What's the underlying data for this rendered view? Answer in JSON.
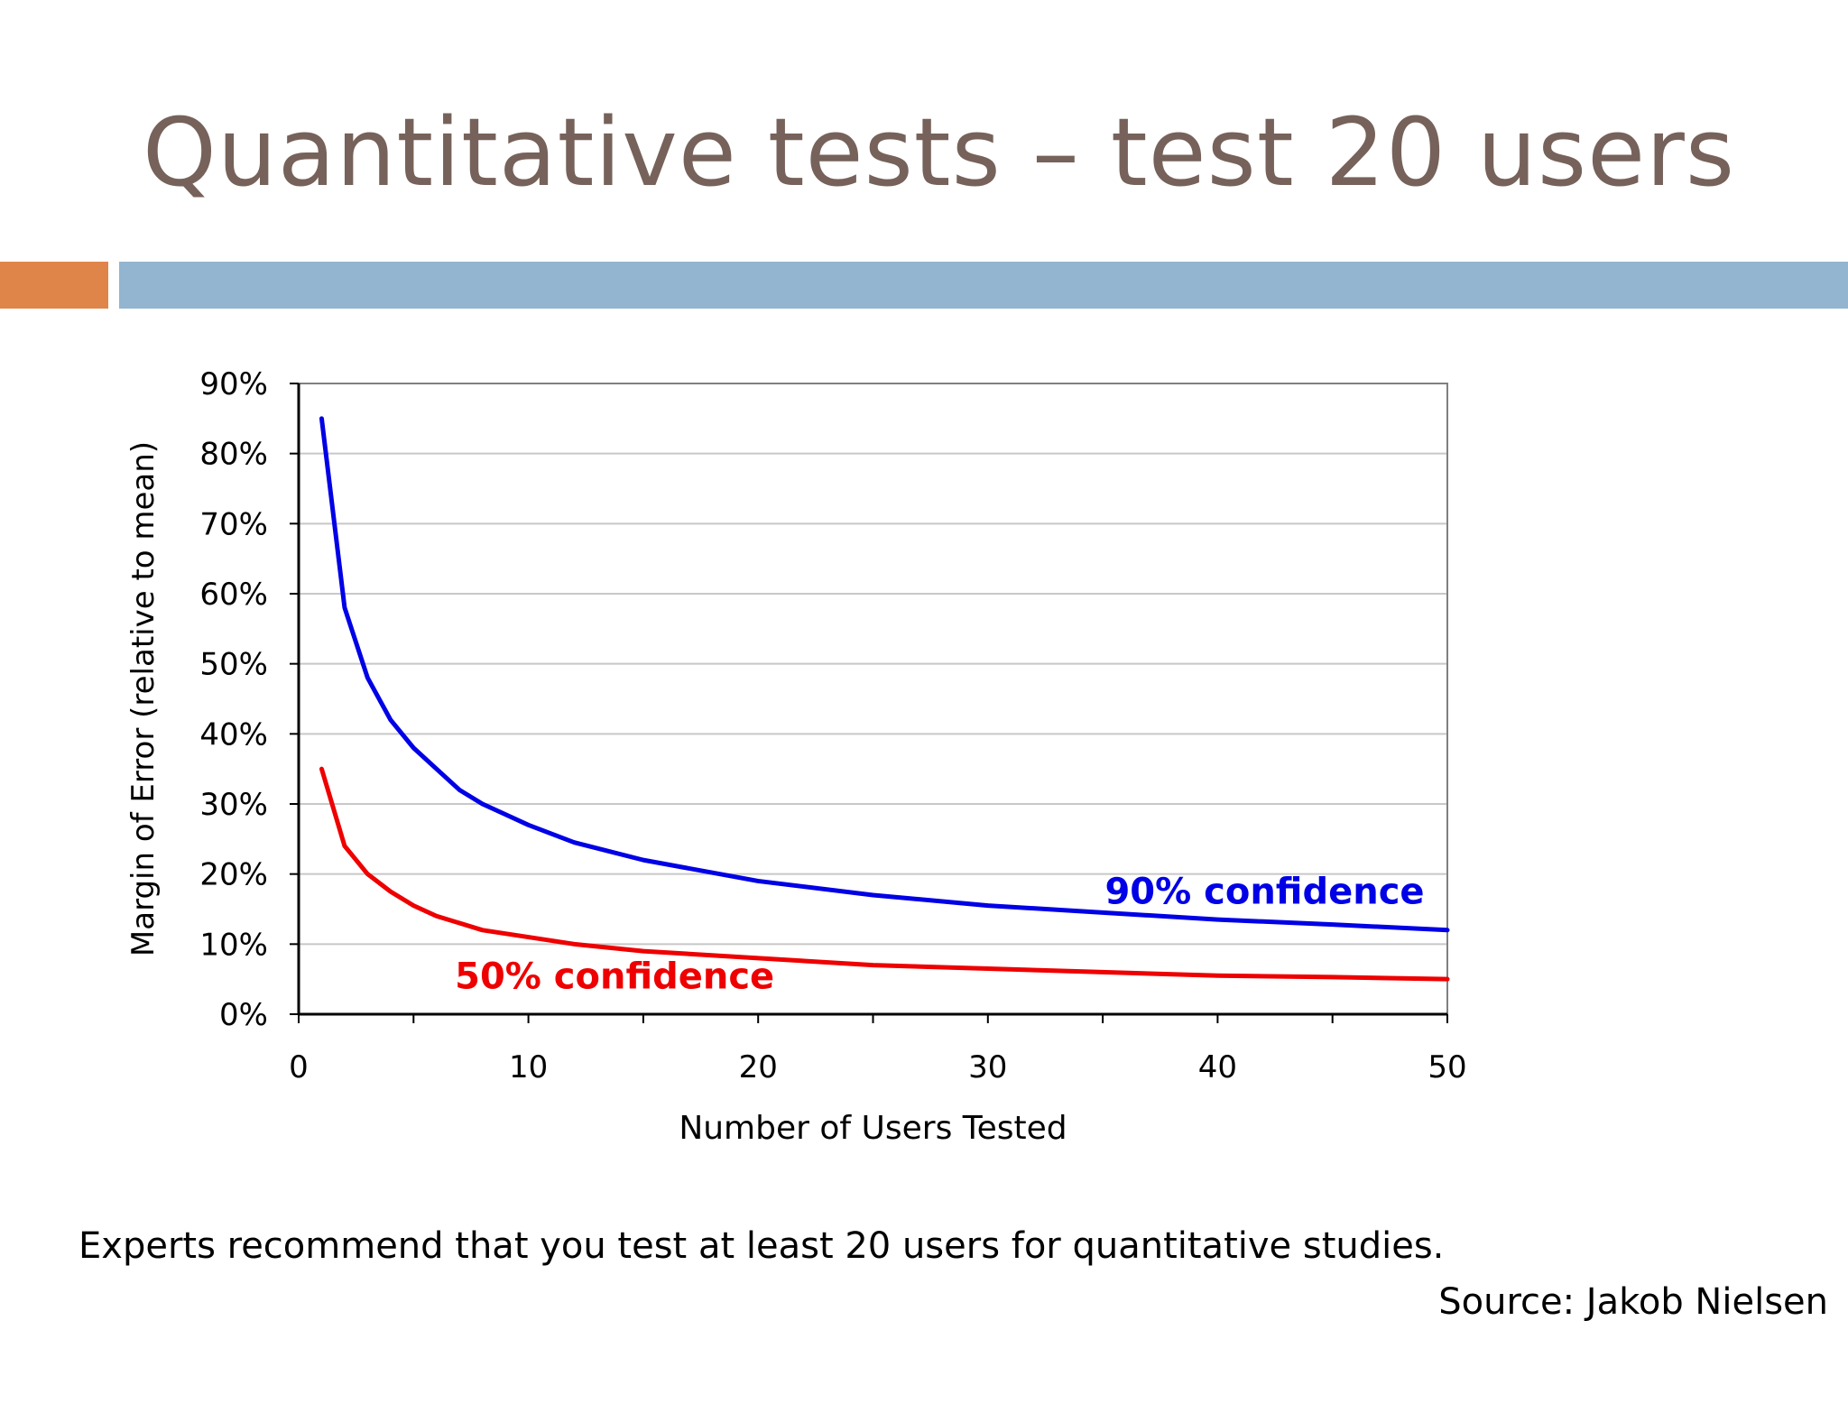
{
  "slide": {
    "title": "Quantitative tests – test 20 users",
    "caption": "Experts recommend that you test at least 20 users for quantitative studies.",
    "source": "Source: Jakob Nielsen"
  },
  "colors": {
    "title": "#76625a",
    "accent_bar": "#e0854a",
    "main_bar": "#93b5cf",
    "series_90": "#0000e6",
    "series_50": "#ee0000",
    "grid": "#c8c8c8",
    "axis": "#000000"
  },
  "chart_data": {
    "type": "line",
    "title": "",
    "xlabel": "Number of Users Tested",
    "ylabel": "Margin of Error (relative to mean)",
    "xlim": [
      0,
      50
    ],
    "ylim": [
      0,
      90
    ],
    "x_ticks": [
      "0",
      "10",
      "20",
      "30",
      "40",
      "50"
    ],
    "y_ticks": [
      "0%",
      "10%",
      "20%",
      "30%",
      "40%",
      "50%",
      "60%",
      "70%",
      "80%",
      "90%"
    ],
    "grid": true,
    "series": [
      {
        "name": "90% confidence",
        "x": [
          1,
          2,
          3,
          4,
          5,
          6,
          7,
          8,
          9,
          10,
          12,
          15,
          20,
          25,
          30,
          35,
          40,
          45,
          50
        ],
        "y": [
          85,
          58,
          48,
          42,
          38,
          35,
          32,
          30,
          28.5,
          27,
          24.5,
          22,
          19,
          17,
          15.5,
          14.5,
          13.5,
          12.8,
          12
        ]
      },
      {
        "name": "50% confidence",
        "x": [
          1,
          2,
          3,
          4,
          5,
          6,
          7,
          8,
          9,
          10,
          12,
          15,
          20,
          25,
          30,
          35,
          40,
          45,
          50
        ],
        "y": [
          35,
          24,
          20,
          17.5,
          15.5,
          14,
          13,
          12,
          11.5,
          11,
          10,
          9,
          8,
          7,
          6.5,
          6,
          5.5,
          5.3,
          5
        ]
      }
    ]
  }
}
